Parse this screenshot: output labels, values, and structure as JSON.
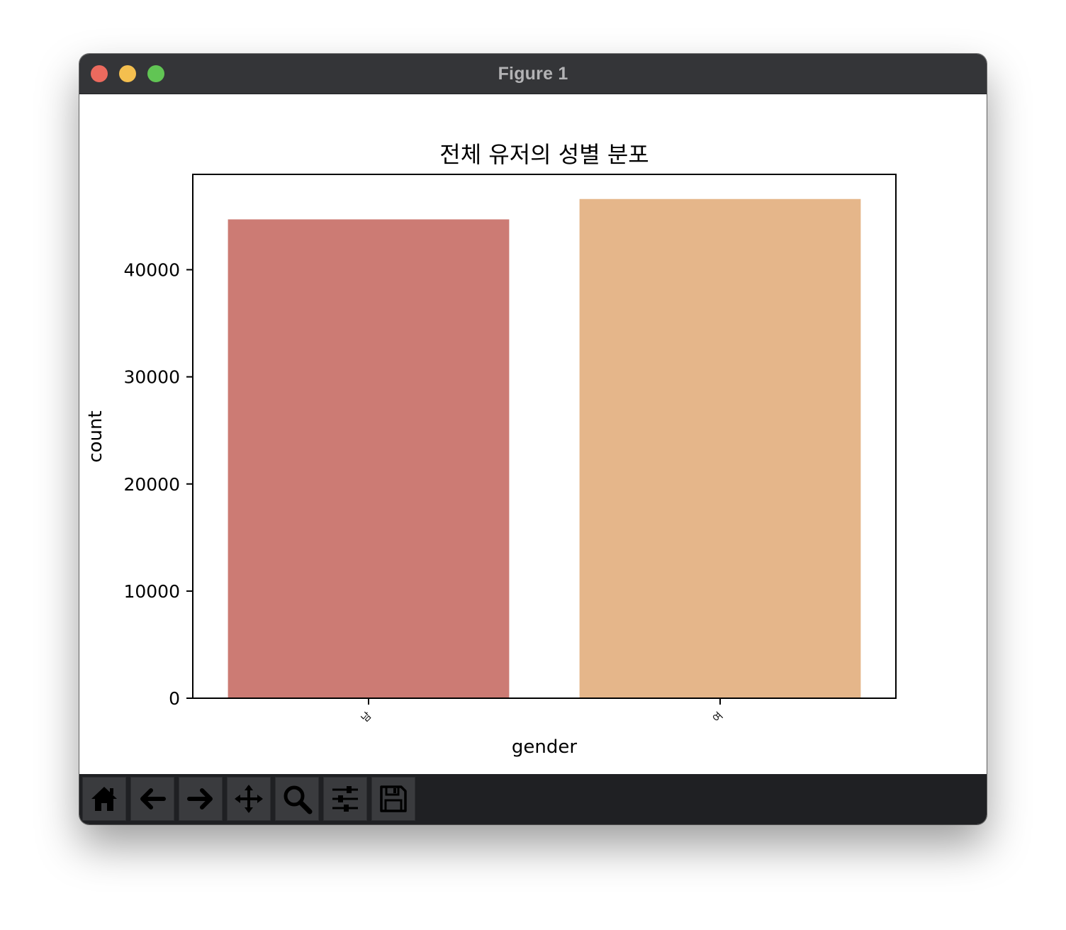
{
  "window": {
    "title": "Figure 1",
    "colors": {
      "close": "#ec6a5e",
      "minimize": "#f4bf4f",
      "maximize": "#61c554"
    }
  },
  "toolbar": {
    "buttons": [
      {
        "icon": "home-icon",
        "name": "home-button"
      },
      {
        "icon": "arrow-left-icon",
        "name": "back-button"
      },
      {
        "icon": "arrow-right-icon",
        "name": "forward-button"
      },
      {
        "icon": "move-icon",
        "name": "pan-button"
      },
      {
        "icon": "search-icon",
        "name": "zoom-button"
      },
      {
        "icon": "sliders-icon",
        "name": "configure-subplots-button"
      },
      {
        "icon": "save-icon",
        "name": "save-button"
      }
    ]
  },
  "chart_data": {
    "type": "bar",
    "title": "전체 유저의 성별 분포",
    "xlabel": "gender",
    "ylabel": "count",
    "categories": [
      "남",
      "여"
    ],
    "values": [
      44700,
      46600
    ],
    "colors": [
      "#cc7b74",
      "#e5b68a"
    ],
    "ylim": [
      0,
      48900
    ],
    "yticks": [
      0,
      10000,
      20000,
      30000,
      40000
    ],
    "ytick_labels": [
      "0",
      "10000",
      "20000",
      "30000",
      "40000"
    ],
    "grid": false,
    "xtick_rotation": -45
  }
}
